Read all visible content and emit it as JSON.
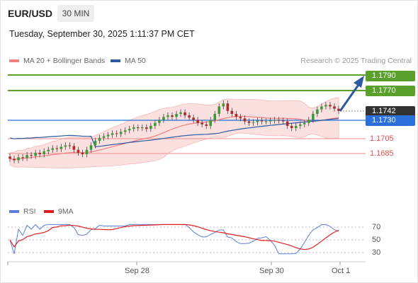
{
  "header": {
    "symbol": "EUR/USD",
    "timeframe": "30 MIN",
    "datetime": "Tuesday, September 30, 2025 1:11:37 PM CET"
  },
  "legend": {
    "ma20": {
      "label": "MA 20 + Bollinger Bands",
      "color": "#f08080"
    },
    "ma50": {
      "label": "MA 50",
      "color": "#2c5aa0"
    },
    "credit": "Research © 2025 Trading Central"
  },
  "levels": {
    "r2": {
      "value": "1.1790",
      "color": "#5aa02c"
    },
    "r1": {
      "value": "1.1770",
      "color": "#5aa02c"
    },
    "last": {
      "value": "1.1742",
      "color": "#333333"
    },
    "pivot": {
      "value": "1.1730",
      "color": "#2a6fdb"
    },
    "s1": {
      "value": "1.1705",
      "color": "#e05050"
    },
    "s2": {
      "value": "1.1685",
      "color": "#e05050"
    }
  },
  "rsi": {
    "rsi_label": "RSI",
    "rsi_color": "#5b7fd6",
    "ma_label": "9MA",
    "ma_color": "#e02020",
    "levels": [
      "70",
      "50",
      "30"
    ]
  },
  "xaxis": {
    "labels": [
      "Sep 28",
      "Sep 30",
      "Oct 1"
    ]
  },
  "chart_data": {
    "type": "candlestick",
    "title": "EUR/USD",
    "price_levels": [
      1.179,
      1.177,
      1.1742,
      1.173,
      1.1705,
      1.1685
    ],
    "close_series": [
      1.1678,
      1.1676,
      1.168,
      1.1679,
      1.1683,
      1.1682,
      1.1686,
      1.1684,
      1.1688,
      1.169,
      1.1692,
      1.1691,
      1.1694,
      1.1696,
      1.1695,
      1.169,
      1.1686,
      1.1684,
      1.169,
      1.1696,
      1.1702,
      1.1706,
      1.1708,
      1.171,
      1.1712,
      1.1711,
      1.1714,
      1.1716,
      1.1718,
      1.172,
      1.1719,
      1.172,
      1.1718,
      1.1722,
      1.1726,
      1.173,
      1.1734,
      1.1736,
      1.1734,
      1.1738,
      1.174,
      1.1736,
      1.1733,
      1.173,
      1.1726,
      1.1724,
      1.1722,
      1.173,
      1.1738,
      1.1748,
      1.1752,
      1.1742,
      1.1738,
      1.1734,
      1.1732,
      1.1728,
      1.1726,
      1.1727,
      1.1729,
      1.1728,
      1.1728,
      1.1729,
      1.173,
      1.1729,
      1.1728,
      1.1722,
      1.1719,
      1.1722,
      1.1724,
      1.1726,
      1.173,
      1.1738,
      1.1744,
      1.1748,
      1.175,
      1.1748,
      1.1745,
      1.1742
    ],
    "rsi_levels": [
      70,
      50,
      30
    ]
  }
}
